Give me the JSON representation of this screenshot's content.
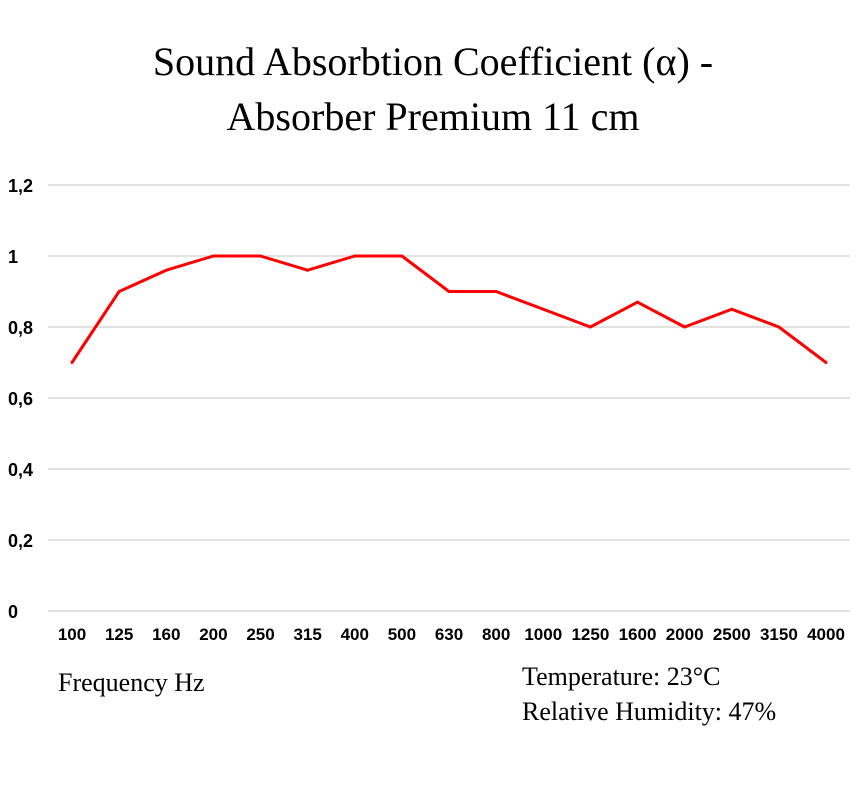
{
  "chart_data": {
    "type": "line",
    "title": [
      "Sound Absorbtion Coefficient (α) -",
      "Absorber Premium 11 cm"
    ],
    "xlabel": "Frequency Hz",
    "ylabel": "",
    "categories": [
      "100",
      "125",
      "160",
      "200",
      "250",
      "315",
      "400",
      "500",
      "630",
      "800",
      "1000",
      "1250",
      "1600",
      "2000",
      "2500",
      "3150",
      "4000"
    ],
    "values": [
      0.7,
      0.9,
      0.96,
      1,
      1,
      0.96,
      1,
      1,
      0.9,
      0.9,
      0.85,
      0.8,
      0.87,
      0.8,
      0.85,
      0.8,
      0.7
    ],
    "yticks": [
      "0",
      "0,2",
      "0,4",
      "0,6",
      "0,8",
      "1",
      "1,2"
    ],
    "ylim": [
      0,
      1.2
    ],
    "grid": true,
    "line_color": "#ff0000",
    "annotations": [
      "Temperature: 23°C",
      "Relative Humidity: 47%"
    ]
  }
}
